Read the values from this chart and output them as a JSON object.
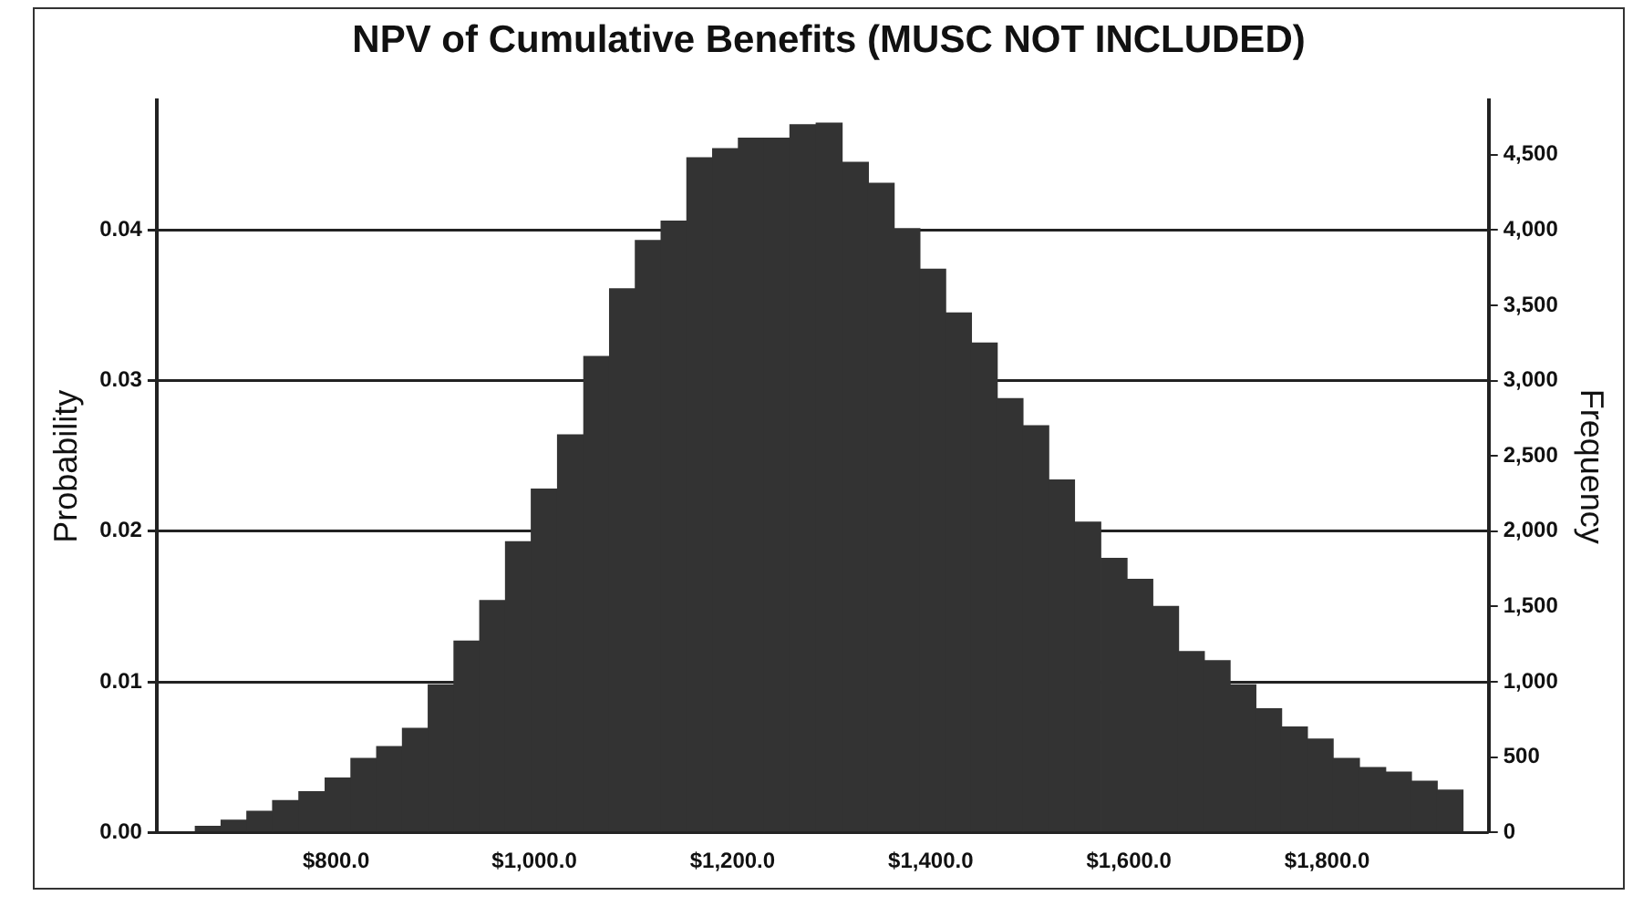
{
  "chart_data": {
    "type": "histogram",
    "title": "NPV of Cumulative Benefits (MUSC NOT INCLUDED)",
    "ylabel": "Probability",
    "y2label": "Frequency",
    "bins": [
      658,
      684,
      710,
      736,
      762,
      789,
      815,
      841,
      867,
      893,
      919,
      945,
      971,
      997,
      1023,
      1050,
      1076,
      1102,
      1128,
      1154,
      1180,
      1206,
      1232,
      1258,
      1284,
      1311,
      1337,
      1363,
      1389,
      1415,
      1441,
      1467,
      1493,
      1519,
      1545,
      1572,
      1598,
      1624,
      1650,
      1676,
      1702,
      1728,
      1754,
      1780,
      1806,
      1833,
      1859,
      1885,
      1911,
      1937
    ],
    "values": [
      0.0004,
      0.0008,
      0.0014,
      0.0021,
      0.0027,
      0.0036,
      0.0049,
      0.0057,
      0.0069,
      0.0098,
      0.0127,
      0.0154,
      0.0193,
      0.0228,
      0.0264,
      0.0316,
      0.0361,
      0.0393,
      0.0406,
      0.0448,
      0.0454,
      0.0461,
      0.0461,
      0.047,
      0.0471,
      0.0445,
      0.0431,
      0.0401,
      0.0374,
      0.0345,
      0.0325,
      0.0288,
      0.027,
      0.0234,
      0.0206,
      0.0182,
      0.0168,
      0.015,
      0.012,
      0.0114,
      0.0098,
      0.0082,
      0.007,
      0.0062,
      0.0049,
      0.0043,
      0.004,
      0.0034,
      0.0028
    ],
    "color": "#333333",
    "xlim": [
      619,
      1963
    ],
    "xticks": [
      {
        "value": 800,
        "label": "$800.0"
      },
      {
        "value": 1000,
        "label": "$1,000.0"
      },
      {
        "value": 1200,
        "label": "$1,200.0"
      },
      {
        "value": 1400,
        "label": "$1,400.0"
      },
      {
        "value": 1600,
        "label": "$1,600.0"
      },
      {
        "value": 1800,
        "label": "$1,800.0"
      }
    ],
    "ylim": [
      0,
      0.0486
    ],
    "yticks": [
      {
        "value": 0,
        "label": "0.00"
      },
      0.01,
      0.02,
      0.03,
      0.04
    ],
    "y2lim": [
      0,
      4860
    ],
    "y2ticks": [
      0,
      500,
      {
        "value": 1000,
        "label": "1,000"
      },
      {
        "value": 1500,
        "label": "1,500"
      },
      {
        "value": 2000,
        "label": "2,000"
      },
      {
        "value": 2500,
        "label": "2,500"
      },
      {
        "value": 3000,
        "label": "3,000"
      },
      {
        "value": 3500,
        "label": "3,500"
      },
      {
        "value": 4000,
        "label": "4,000"
      },
      {
        "value": 4500,
        "label": "4,500"
      }
    ],
    "grid": "y"
  }
}
